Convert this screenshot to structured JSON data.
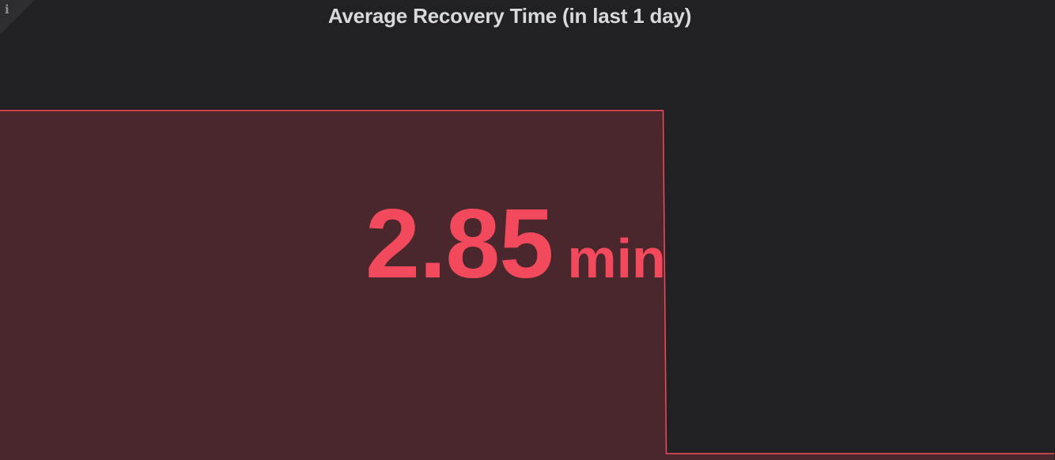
{
  "panel": {
    "title": "Average Recovery Time (in last 1 day)",
    "info_icon": "info-icon",
    "info_glyph": "i"
  },
  "stat": {
    "value": "2.85",
    "unit": "min",
    "color": "#f2495c"
  },
  "sparkline": {
    "line_color": "#f2495c",
    "fill_color": "#4a262d",
    "background": "#212124",
    "y_min": 0,
    "y_max": 3.5,
    "points": [
      {
        "t": 0,
        "v": 2.85
      },
      {
        "t": 0.629,
        "v": 2.85
      },
      {
        "t": 0.632,
        "v": 0.02
      },
      {
        "t": 1,
        "v": 0.02
      }
    ]
  }
}
